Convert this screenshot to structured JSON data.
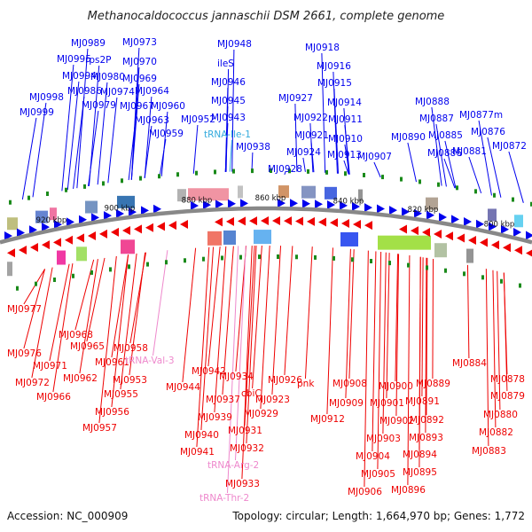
{
  "title": "Methanocaldococcus jannaschii DSM 2661, complete genome",
  "footer": {
    "accession": "Accession: NC_000909",
    "topology": "Topology: circular; Length: 1,664,970 bp; Genes: 1,772"
  },
  "colors": {
    "forward": "#0000ee",
    "reverse": "#ee0000",
    "trna_forward": "#33aadd",
    "trna_reverse": "#ee88cc",
    "backbone": "#888888",
    "tick": "#1a8a1a"
  },
  "scale_labels": [
    "920 kbp",
    "900 kbp",
    "880 kbp",
    "860 kbp",
    "840 kbp",
    "820 kbp",
    "800 kbp"
  ],
  "genes_top": [
    "MJ0989",
    "MJ0973",
    "MJ0995",
    "rps2P",
    "MJ0970",
    "MJ0994",
    "MJ0980",
    "MJ0969",
    "MJ0986",
    "MJ0974",
    "MJ0964",
    "MJ0998",
    "MJ0979",
    "MJ0967",
    "MJ0960",
    "MJ0999",
    "MJ0963",
    "MJ0959",
    "MJ0948",
    "ileS",
    "MJ0946",
    "MJ0945",
    "MJ0943",
    "MJ0952",
    "tRNA-Ile-1",
    "MJ0938",
    "MJ0918",
    "MJ0916",
    "MJ0915",
    "MJ0927",
    "MJ0914",
    "MJ0922",
    "MJ0911",
    "MJ0921",
    "MJ0910",
    "MJ0924",
    "MJ0913",
    "MJ0928",
    "MJ0907",
    "MJ0888",
    "MJ0887",
    "MJ0877m",
    "MJ0876",
    "MJ0890",
    "MJ0885",
    "MJ0872",
    "MJ0886",
    "MJ0881"
  ],
  "genes_bottom": [
    "MJ0977",
    "MJ0968",
    "MJ0976",
    "MJ0965",
    "MJ0971",
    "MJ0958",
    "MJ0961",
    "tRNA-Val-3",
    "MJ0972",
    "MJ0962",
    "MJ0953",
    "MJ0966",
    "MJ0955",
    "MJ0956",
    "MJ0957",
    "MJ0942",
    "MJ0944",
    "MJ0934",
    "MJ0937",
    "cbiC",
    "MJ0939",
    "MJ0929",
    "MJ0926",
    "MJ0923",
    "pnk",
    "MJ0940",
    "MJ0931",
    "MJ0941",
    "MJ0932",
    "tRNA-Arg-2",
    "MJ0933",
    "tRNA-Thr-2",
    "MJ0908",
    "MJ0900",
    "MJ0889",
    "MJ0909",
    "MJ0901",
    "MJ0891",
    "MJ0912",
    "MJ0902",
    "MJ0892",
    "MJ0903",
    "MJ0893",
    "MJ0904",
    "MJ0894",
    "MJ0905",
    "MJ0895",
    "MJ0906",
    "MJ0896",
    "MJ0884",
    "MJ0878",
    "MJ0879",
    "MJ0880",
    "MJ0882",
    "MJ0883"
  ]
}
